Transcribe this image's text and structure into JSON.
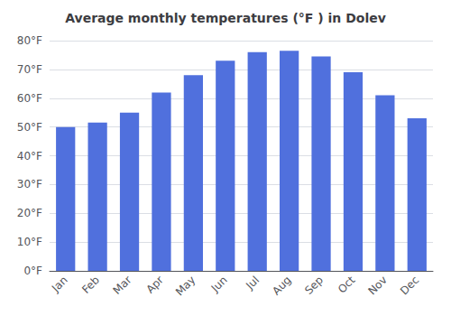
{
  "chart_data": {
    "type": "bar",
    "title": "Average monthly temperatures (°F ) in Dolev",
    "categories": [
      "Jan",
      "Feb",
      "Mar",
      "Apr",
      "May",
      "Jun",
      "Jul",
      "Aug",
      "Sep",
      "Oct",
      "Nov",
      "Dec"
    ],
    "values": [
      50,
      51.5,
      55,
      62,
      68,
      73,
      76,
      76.5,
      74.5,
      69,
      61,
      53
    ],
    "ylim": [
      0,
      80
    ],
    "yticks": [
      {
        "value": 0,
        "label": "0°F"
      },
      {
        "value": 10,
        "label": "10°F"
      },
      {
        "value": 20,
        "label": "20°F"
      },
      {
        "value": 30,
        "label": "30°F"
      },
      {
        "value": 40,
        "label": "40°F"
      },
      {
        "value": 50,
        "label": "50°F"
      },
      {
        "value": 60,
        "label": "60°F"
      },
      {
        "value": 70,
        "label": "70°F"
      },
      {
        "value": 80,
        "label": "80°F"
      }
    ],
    "grid": true
  }
}
